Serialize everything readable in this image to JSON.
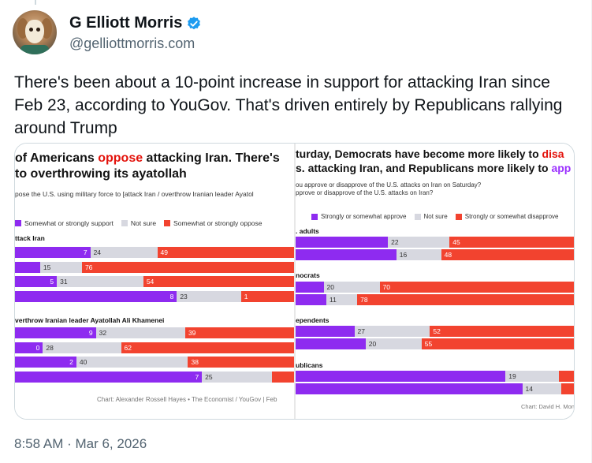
{
  "author": {
    "name": "G Elliott Morris",
    "handle": "@gelliottmorris.com"
  },
  "tweet": {
    "text": "There's been about a 10-point increase in support for attacking Iran since Feb 23, according to YouGov. That's driven entirely by Republicans rallying around Trump",
    "timestamp": "8:58 AM · Mar 6, 2026"
  },
  "colors": {
    "support": "#8e2bf0",
    "not_sure": "#d7d8e0",
    "oppose": "#f2432f",
    "title_accent_red": "#e3120b",
    "title_accent_purple": "#9b30ff"
  },
  "left_chart": {
    "title_line1_pre": "of Americans ",
    "title_line1_accent": "oppose",
    "title_line1_post": " attacking Iran. There's",
    "title_line2": "to overthrowing its ayatollah",
    "subtitle": "pose the U.S. using military force to [attack Iran / overthrow Iranian leader Ayatol",
    "legend": [
      "Somewhat or strongly support",
      "Not sure",
      "Somewhat or strongly oppose"
    ],
    "source": "Chart: Alexander Rossell Hayes • The Economist / YouGov | Feb"
  },
  "right_chart": {
    "title_line1_pre": "turday, Democrats have become more likely to ",
    "title_line1_accent": "disa",
    "title_line2_pre": "s. attacking Iran, and Republicans more likely to ",
    "title_line2_accent": "app",
    "subtitle_line1": "ou approve or disapprove of the U.S. attacks on Iran on Saturday?",
    "subtitle_line2": "pprove or disapprove of the U.S. attacks on Iran?",
    "legend": [
      "Strongly or somewhat approve",
      "Not sure",
      "Strongly or somewhat disapprove"
    ],
    "source": "Chart: David H. Montgom"
  },
  "chart_data": [
    {
      "type": "bar",
      "stacked": true,
      "orientation": "horizontal",
      "series_names": [
        "Somewhat or strongly support",
        "Not sure",
        "Somewhat or strongly oppose"
      ],
      "groups": [
        {
          "label": "ttack Iran",
          "rows": [
            {
              "labels": [
                "7",
                "24",
                "49"
              ],
              "values": [
                27,
                24,
                49
              ]
            },
            {
              "labels": [
                "",
                "15",
                "76"
              ],
              "values": [
                9,
                15,
                76
              ]
            },
            {
              "labels": [
                "5",
                "31",
                "54"
              ],
              "values": [
                15,
                31,
                54
              ]
            },
            {
              "labels": [
                "8",
                "23",
                "1"
              ],
              "values": [
                58,
                23,
                19
              ]
            }
          ]
        },
        {
          "label": "verthrow Iranian leader Ayatollah Ali Khamenei",
          "rows": [
            {
              "labels": [
                "9",
                "32",
                "39"
              ],
              "values": [
                29,
                32,
                39
              ]
            },
            {
              "labels": [
                "0",
                "28",
                "62"
              ],
              "values": [
                10,
                28,
                62
              ]
            },
            {
              "labels": [
                "2",
                "40",
                "38"
              ],
              "values": [
                22,
                40,
                38
              ]
            },
            {
              "labels": [
                "7",
                "25",
                ""
              ],
              "values": [
                67,
                25,
                8
              ]
            }
          ]
        }
      ]
    },
    {
      "type": "bar",
      "stacked": true,
      "orientation": "horizontal",
      "series_names": [
        "Strongly or somewhat approve",
        "Not sure",
        "Strongly or somewhat disapprove"
      ],
      "groups": [
        {
          "label": ". adults",
          "rows": [
            {
              "labels": [
                "",
                "22",
                "45"
              ],
              "values": [
                33,
                22,
                45
              ]
            },
            {
              "labels": [
                "",
                "16",
                "48"
              ],
              "values": [
                36,
                16,
                48
              ]
            }
          ]
        },
        {
          "label": "nocrats",
          "rows": [
            {
              "labels": [
                "",
                "20",
                "70"
              ],
              "values": [
                10,
                20,
                70
              ]
            },
            {
              "labels": [
                "",
                "11",
                "78"
              ],
              "values": [
                11,
                11,
                78
              ]
            }
          ]
        },
        {
          "label": "ependents",
          "rows": [
            {
              "labels": [
                "",
                "27",
                "52"
              ],
              "values": [
                21,
                27,
                52
              ]
            },
            {
              "labels": [
                "",
                "20",
                "55"
              ],
              "values": [
                25,
                20,
                55
              ]
            }
          ]
        },
        {
          "label": "ublicans",
          "rows": [
            {
              "labels": [
                "",
                "19",
                ""
              ],
              "values": [
                75,
                19,
                6
              ]
            },
            {
              "labels": [
                "",
                "14",
                ""
              ],
              "values": [
                81,
                14,
                5
              ]
            }
          ]
        }
      ]
    }
  ]
}
